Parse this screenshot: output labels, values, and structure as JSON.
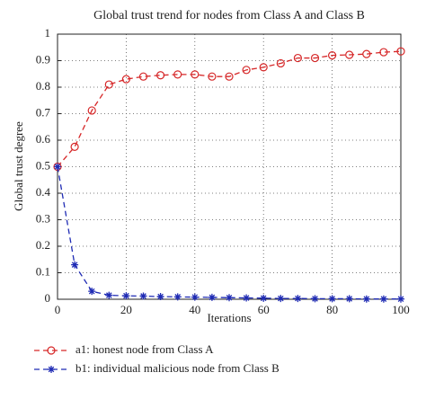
{
  "chart_data": {
    "type": "line",
    "title": "Global trust trend for nodes from Class A and Class B",
    "x_label": "Iterations",
    "y_label": "Global trust degree",
    "x": [
      0,
      5,
      10,
      15,
      20,
      25,
      30,
      35,
      40,
      45,
      50,
      55,
      60,
      65,
      70,
      75,
      80,
      85,
      90,
      95,
      100
    ],
    "series": [
      {
        "name": "a1: honest node from Class A",
        "color": "#d62728",
        "marker": "circle",
        "dash": true,
        "values": [
          0.5,
          0.575,
          0.712,
          0.81,
          0.83,
          0.84,
          0.845,
          0.848,
          0.848,
          0.84,
          0.84,
          0.865,
          0.875,
          0.89,
          0.91,
          0.91,
          0.92,
          0.922,
          0.925,
          0.932,
          0.935
        ]
      },
      {
        "name": "b1: individual malicious node from Class B",
        "color": "#1f2bb4",
        "marker": "star",
        "dash": true,
        "values": [
          0.5,
          0.13,
          0.03,
          0.015,
          0.013,
          0.012,
          0.01,
          0.009,
          0.008,
          0.007,
          0.006,
          0.005,
          0.004,
          0.003,
          0.003,
          0.002,
          0.002,
          0.002,
          0.001,
          0.001,
          0.001
        ]
      }
    ],
    "xlim": [
      0,
      100
    ],
    "xticks": [
      0,
      20,
      40,
      60,
      80,
      100
    ],
    "ylim": [
      0,
      1
    ],
    "yticks": [
      0,
      0.1,
      0.2,
      0.3,
      0.4,
      0.5,
      0.6,
      0.7,
      0.8,
      0.9,
      1
    ],
    "grid": true,
    "legend": "below"
  }
}
